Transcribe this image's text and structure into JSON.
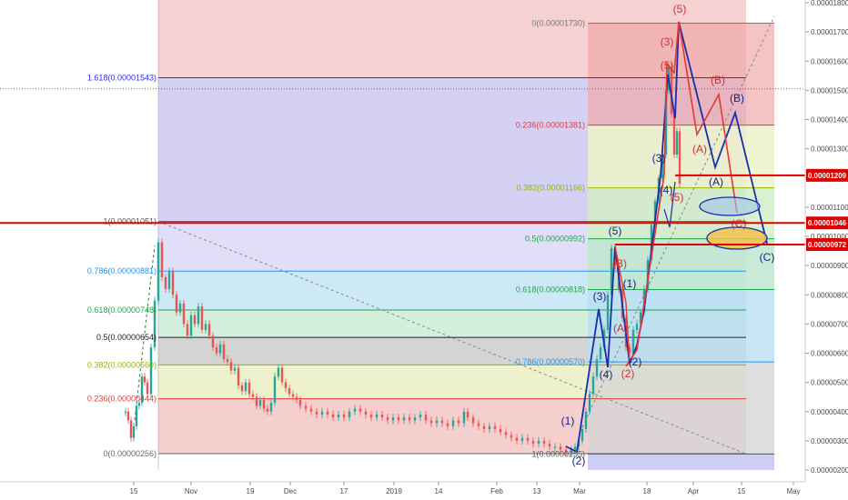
{
  "chart_data": {
    "type": "candlestick-with-annotations",
    "title": "",
    "xlabel": "",
    "ylabel": "",
    "y_axis": {
      "ticks": [
        "0.00001800",
        "0.00001700",
        "0.00001600",
        "0.00001500",
        "0.00001400",
        "0.00001300",
        "0.00001200",
        "0.00001100",
        "0.00001000",
        "0.00000900",
        "0.00000800",
        "0.00000700",
        "0.00000600",
        "0.00000500",
        "0.00000400",
        "0.00000300",
        "0.00000200"
      ],
      "ylim": [
        1.9e-06,
        1.83e-05
      ]
    },
    "x_axis": {
      "ticks": [
        "15",
        "Nov",
        "19",
        "Dec",
        "17",
        "2019",
        "14",
        "Feb",
        "13",
        "Mar",
        "18",
        "Apr",
        "15",
        "May"
      ]
    },
    "price_badges": [
      {
        "label": "0.00001209",
        "value": 1.209e-05,
        "color": "#e00000"
      },
      {
        "label": "0.00001046",
        "value": 1.046e-05,
        "color": "#e00000"
      },
      {
        "label": "0.00000972",
        "value": 9.72e-06,
        "color": "#e00000"
      }
    ],
    "fib_left": [
      {
        "label": "1.618(0.00001543)",
        "value": 1.543e-05,
        "color": "#2b2bff"
      },
      {
        "label": "1(0.00001051)",
        "value": 1.051e-05,
        "color": "#555555"
      },
      {
        "label": "0.786(0.00000881)",
        "value": 8.81e-06,
        "color": "#2196f3"
      },
      {
        "label": "0.618(0.00000748)",
        "value": 7.48e-06,
        "color": "#1fa64a"
      },
      {
        "label": "0.5(0.00000654)",
        "value": 6.54e-06,
        "color": "#222222"
      },
      {
        "label": "0.382(0.00000560)",
        "value": 5.6e-06,
        "color": "#8fb800"
      },
      {
        "label": "0.236(0.00000444)",
        "value": 4.44e-06,
        "color": "#e53935"
      },
      {
        "label": "0(0.00000256)",
        "value": 2.56e-06,
        "color": "#666666"
      }
    ],
    "fib_right": [
      {
        "label": "0(0.00001730)",
        "value": 1.73e-05,
        "color": "#777777"
      },
      {
        "label": "0.236(0.00001381)",
        "value": 1.381e-05,
        "color": "#e53935"
      },
      {
        "label": "0.382(0.00001166)",
        "value": 1.166e-05,
        "color": "#8fb800"
      },
      {
        "label": "0.5(0.00000992)",
        "value": 9.92e-06,
        "color": "#1fa64a"
      },
      {
        "label": "0.618(0.00000818)",
        "value": 8.18e-06,
        "color": "#1fa64a"
      },
      {
        "label": "0.786(0.00000570)",
        "value": 5.7e-06,
        "color": "#2196f3"
      },
      {
        "label": "1(0.00000255)",
        "value": 2.55e-06,
        "color": "#555555"
      }
    ],
    "wave_labels": [
      {
        "text": "(5)",
        "color": "#d32f2f"
      },
      {
        "text": "(3)",
        "color": "#d32f2f"
      },
      {
        "text": "(5)",
        "color": "#d32f2f"
      },
      {
        "text": "(B)",
        "color": "#d32f2f"
      },
      {
        "text": "(A)",
        "color": "#d32f2f"
      },
      {
        "text": "(C)",
        "color": "#d32f2f"
      },
      {
        "text": "(B)",
        "color": "#1a237e"
      },
      {
        "text": "(A)",
        "color": "#1a237e"
      },
      {
        "text": "(C)",
        "color": "#1a237e"
      },
      {
        "text": "(3)",
        "color": "#1a237e"
      },
      {
        "text": "(4)",
        "color": "#1a237e"
      },
      {
        "text": "(1)",
        "color": "#1a237e"
      },
      {
        "text": "(2)",
        "color": "#1a237e"
      },
      {
        "text": "(5)",
        "color": "#1a237e"
      },
      {
        "text": "(1)",
        "color": "#1a237e"
      },
      {
        "text": "(2)",
        "color": "#1a237e"
      },
      {
        "text": "(3)",
        "color": "#1a237e"
      },
      {
        "text": "(4)",
        "color": "#1a237e"
      },
      {
        "text": "(B)",
        "color": "#d32f2f"
      },
      {
        "text": "(A)",
        "color": "#d32f2f"
      },
      {
        "text": "(2)",
        "color": "#d32f2f"
      },
      {
        "text": "(5)",
        "color": "#d32f2f"
      }
    ]
  }
}
